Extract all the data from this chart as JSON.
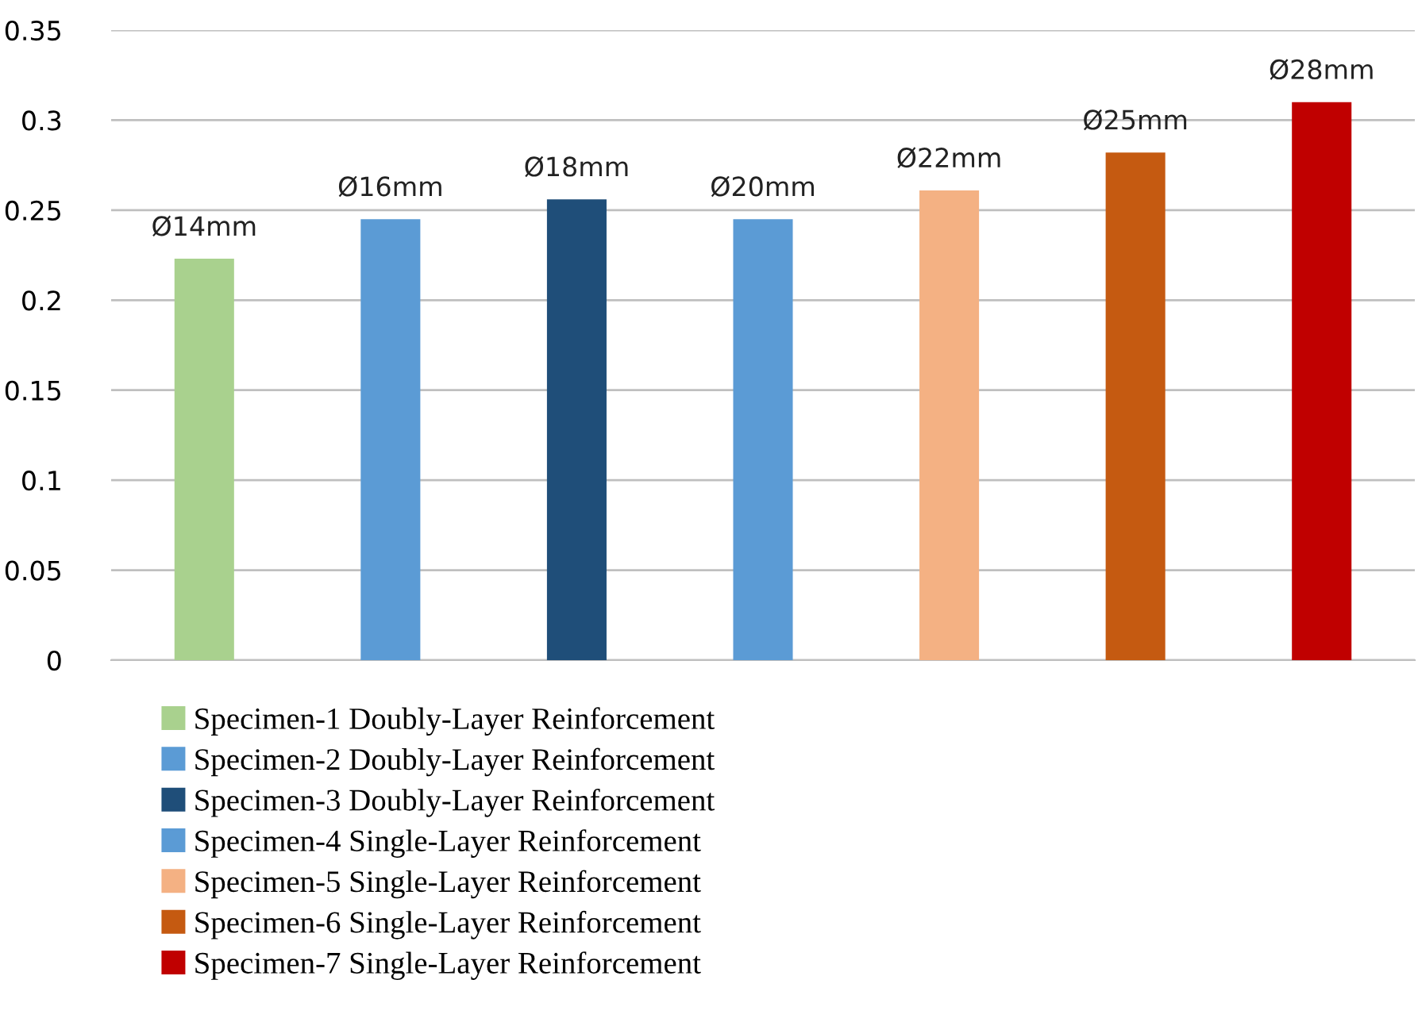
{
  "chart_data": {
    "type": "bar",
    "categories": [
      null,
      null,
      null,
      null,
      null,
      null,
      null
    ],
    "series": [
      {
        "name": "Specimen-1 Doubly-Layer Reinforcement",
        "color": "#a9d18e",
        "values": [
          0.223,
          null,
          null,
          null,
          null,
          null,
          null
        ],
        "value_labels": [
          "Ø14mm",
          null,
          null,
          null,
          null,
          null,
          null
        ]
      },
      {
        "name": "Specimen-2 Doubly-Layer Reinforcement",
        "color": "#5b9bd5",
        "values": [
          null,
          0.245,
          null,
          null,
          null,
          null,
          null
        ],
        "value_labels": [
          null,
          "Ø16mm",
          null,
          null,
          null,
          null,
          null
        ]
      },
      {
        "name": "Specimen-3 Doubly-Layer Reinforcement",
        "color": "#1f4e79",
        "values": [
          null,
          null,
          0.256,
          null,
          null,
          null,
          null
        ],
        "value_labels": [
          null,
          null,
          "Ø18mm",
          null,
          null,
          null,
          null
        ]
      },
      {
        "name": "Specimen-4 Single-Layer Reinforcement",
        "color": "#5b9bd5",
        "values": [
          null,
          null,
          null,
          0.245,
          null,
          null,
          null
        ],
        "value_labels": [
          null,
          null,
          null,
          "Ø20mm",
          null,
          null,
          null
        ]
      },
      {
        "name": "Specimen-5 Single-Layer Reinforcement",
        "color": "#f4b183",
        "values": [
          null,
          null,
          null,
          null,
          0.261,
          null,
          null
        ],
        "value_labels": [
          null,
          null,
          null,
          null,
          "Ø22mm",
          null,
          null
        ]
      },
      {
        "name": "Specimen-6 Single-Layer Reinforcement",
        "color": "#c55a11",
        "values": [
          null,
          null,
          null,
          null,
          null,
          0.282,
          null
        ],
        "value_labels": [
          null,
          null,
          null,
          null,
          null,
          "Ø25mm",
          null
        ]
      },
      {
        "name": "Specimen-7 Single-Layer Reinforcement",
        "color": "#c00000",
        "values": [
          null,
          null,
          null,
          null,
          null,
          null,
          0.31
        ],
        "value_labels": [
          null,
          null,
          null,
          null,
          null,
          null,
          "Ø28mm"
        ]
      }
    ],
    "ylim": [
      0,
      0.35
    ],
    "yticks": [
      0,
      0.05,
      0.1,
      0.15,
      0.2,
      0.25,
      0.3,
      0.35
    ],
    "grid": "y",
    "legend": "bottom"
  }
}
